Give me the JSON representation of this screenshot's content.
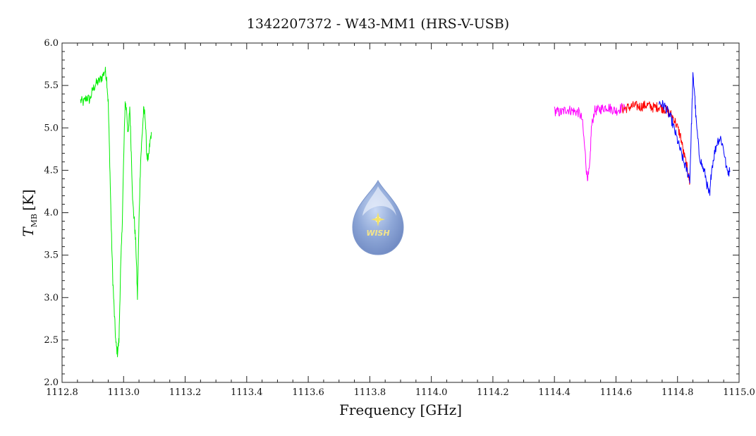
{
  "chart_data": {
    "type": "line",
    "title": "1342207372 - W43-MM1 (HRS-V-USB)",
    "xlabel": "Frequency [GHz]",
    "ylabel_main": "T",
    "ylabel_sub": "MB",
    "ylabel_unit": "[K]",
    "xlim": [
      1112.8,
      1115.0
    ],
    "ylim": [
      2.0,
      6.0
    ],
    "xticks": [
      "1112.8",
      "1113.0",
      "1113.2",
      "1113.4",
      "1113.6",
      "1113.8",
      "1114.0",
      "1114.2",
      "1114.4",
      "1114.6",
      "1114.8",
      "1115.0"
    ],
    "yticks": [
      "2.0",
      "2.5",
      "3.0",
      "3.5",
      "4.0",
      "4.5",
      "5.0",
      "5.5",
      "6.0"
    ],
    "logo_text": "WISH",
    "series": [
      {
        "color": "#00ee00",
        "x": [
          1112.86,
          1112.87,
          1112.88,
          1112.89,
          1112.9,
          1112.91,
          1112.92,
          1112.93,
          1112.94,
          1112.945,
          1112.95,
          1112.955,
          1112.96,
          1112.965,
          1112.97,
          1112.975,
          1112.98,
          1112.985,
          1112.99,
          1112.995,
          1113.0,
          1113.005,
          1113.01,
          1113.015,
          1113.02,
          1113.025,
          1113.03,
          1113.035,
          1113.04,
          1113.045,
          1113.05,
          1113.055,
          1113.06,
          1113.065,
          1113.07,
          1113.075,
          1113.08,
          1113.085,
          1113.09
        ],
        "y": [
          5.32,
          5.3,
          5.36,
          5.33,
          5.45,
          5.52,
          5.55,
          5.6,
          5.68,
          5.58,
          5.3,
          4.6,
          3.8,
          3.2,
          2.8,
          2.45,
          2.35,
          2.5,
          3.3,
          3.8,
          4.6,
          5.3,
          5.2,
          4.9,
          5.25,
          4.7,
          4.1,
          3.9,
          3.6,
          3.0,
          3.9,
          4.6,
          4.9,
          5.2,
          5.15,
          4.7,
          4.6,
          4.8,
          4.95
        ]
      },
      {
        "color": "#ff00ff",
        "x": [
          1114.4,
          1114.42,
          1114.44,
          1114.46,
          1114.48,
          1114.49,
          1114.5,
          1114.505,
          1114.51,
          1114.515,
          1114.52,
          1114.53,
          1114.55,
          1114.57,
          1114.6,
          1114.62,
          1114.63
        ],
        "y": [
          5.2,
          5.18,
          5.22,
          5.2,
          5.18,
          5.1,
          4.7,
          4.45,
          4.42,
          4.55,
          5.0,
          5.2,
          5.22,
          5.25,
          5.2,
          5.24,
          5.22
        ]
      },
      {
        "color": "#ff0000",
        "x": [
          1114.62,
          1114.64,
          1114.66,
          1114.68,
          1114.7,
          1114.72,
          1114.74,
          1114.76,
          1114.78,
          1114.79,
          1114.8,
          1114.81,
          1114.82,
          1114.83,
          1114.835,
          1114.84
        ],
        "y": [
          5.22,
          5.24,
          5.26,
          5.25,
          5.27,
          5.24,
          5.25,
          5.22,
          5.15,
          5.1,
          5.0,
          4.9,
          4.7,
          4.55,
          4.45,
          4.35
        ]
      },
      {
        "color": "#0000ff",
        "x": [
          1114.74,
          1114.76,
          1114.78,
          1114.8,
          1114.82,
          1114.83,
          1114.84,
          1114.845,
          1114.85,
          1114.855,
          1114.86,
          1114.87,
          1114.88,
          1114.89,
          1114.9,
          1114.905,
          1114.91,
          1114.92,
          1114.93,
          1114.94,
          1114.95,
          1114.96,
          1114.97
        ],
        "y": [
          5.3,
          5.25,
          5.1,
          4.85,
          4.6,
          4.5,
          4.4,
          5.0,
          5.6,
          5.45,
          5.1,
          4.7,
          4.55,
          4.45,
          4.25,
          4.2,
          4.5,
          4.7,
          4.85,
          4.88,
          4.75,
          4.5,
          4.48
        ]
      }
    ]
  }
}
